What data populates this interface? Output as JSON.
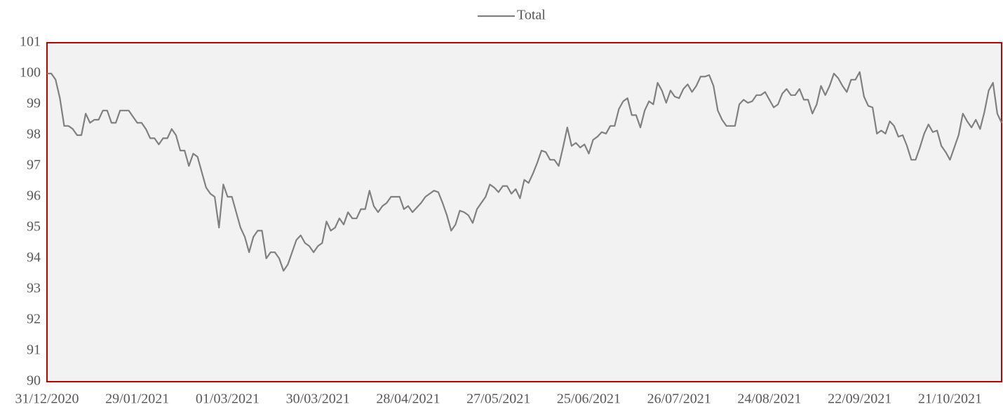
{
  "chart_data": {
    "type": "line",
    "categories": [
      "31/12/2020",
      null,
      null,
      null,
      null,
      null,
      null,
      null,
      null,
      null,
      null,
      null,
      null,
      null,
      null,
      null,
      null,
      null,
      null,
      null,
      null,
      "29/01/2021",
      null,
      null,
      null,
      null,
      null,
      null,
      null,
      null,
      null,
      null,
      null,
      null,
      null,
      null,
      null,
      null,
      null,
      null,
      null,
      null,
      "01/03/2021",
      null,
      null,
      null,
      null,
      null,
      null,
      null,
      null,
      null,
      null,
      null,
      null,
      null,
      null,
      null,
      null,
      null,
      null,
      null,
      null,
      "30/03/2021",
      null,
      null,
      null,
      null,
      null,
      null,
      null,
      null,
      null,
      null,
      null,
      null,
      null,
      null,
      null,
      null,
      null,
      null,
      null,
      null,
      "28/04/2021",
      null,
      null,
      null,
      null,
      null,
      null,
      null,
      null,
      null,
      null,
      null,
      null,
      null,
      null,
      null,
      null,
      null,
      null,
      null,
      null,
      "27/05/2021",
      null,
      null,
      null,
      null,
      null,
      null,
      null,
      null,
      null,
      null,
      null,
      null,
      null,
      null,
      null,
      null,
      null,
      null,
      null,
      null,
      "25/06/2021",
      null,
      null,
      null,
      null,
      null,
      null,
      null,
      null,
      null,
      null,
      null,
      null,
      null,
      null,
      null,
      null,
      null,
      null,
      null,
      null,
      "26/07/2021",
      null,
      null,
      null,
      null,
      null,
      null,
      null,
      null,
      null,
      null,
      null,
      null,
      null,
      null,
      null,
      null,
      null,
      null,
      null,
      null,
      "24/08/2021",
      null,
      null,
      null,
      null,
      null,
      null,
      null,
      null,
      null,
      null,
      null,
      null,
      null,
      null,
      null,
      null,
      null,
      null,
      null,
      null,
      "22/09/2021",
      null,
      null,
      null,
      null,
      null,
      null,
      null,
      null,
      null,
      null,
      null,
      null,
      null,
      null,
      null,
      null,
      null,
      null,
      null,
      null,
      "21/10/2021",
      null,
      null,
      null,
      null,
      null,
      null,
      null,
      null,
      null,
      null,
      null,
      null
    ],
    "series": [
      {
        "name": "Total",
        "color": "#808080",
        "values": [
          100,
          100,
          99.8,
          99.2,
          98.3,
          98.3,
          98.2,
          98.0,
          98.0,
          98.7,
          98.4,
          98.5,
          98.5,
          98.8,
          98.8,
          98.4,
          98.4,
          98.8,
          98.8,
          98.8,
          98.6,
          98.4,
          98.4,
          98.2,
          97.9,
          97.9,
          97.7,
          97.9,
          97.9,
          98.2,
          98.0,
          97.5,
          97.5,
          97.0,
          97.4,
          97.3,
          96.8,
          96.3,
          96.1,
          96.0,
          95.0,
          96.4,
          96.0,
          96.0,
          95.5,
          95.0,
          94.7,
          94.2,
          94.7,
          94.9,
          94.9,
          94.0,
          94.2,
          94.2,
          94.0,
          93.6,
          93.8,
          94.2,
          94.6,
          94.75,
          94.5,
          94.4,
          94.2,
          94.4,
          94.5,
          95.2,
          94.9,
          95.0,
          95.3,
          95.1,
          95.5,
          95.3,
          95.3,
          95.6,
          95.6,
          96.2,
          95.7,
          95.5,
          95.7,
          95.8,
          96.0,
          96.0,
          96.0,
          95.6,
          95.7,
          95.5,
          95.65,
          95.8,
          96.0,
          96.1,
          96.2,
          96.15,
          95.8,
          95.4,
          94.9,
          95.1,
          95.55,
          95.5,
          95.4,
          95.15,
          95.6,
          95.8,
          96.0,
          96.4,
          96.3,
          96.15,
          96.35,
          96.35,
          96.1,
          96.25,
          95.95,
          96.55,
          96.45,
          96.75,
          97.1,
          97.5,
          97.45,
          97.2,
          97.2,
          97.0,
          97.6,
          98.25,
          97.65,
          97.75,
          97.6,
          97.7,
          97.4,
          97.85,
          97.95,
          98.1,
          98.05,
          98.3,
          98.3,
          98.85,
          99.1,
          99.2,
          98.65,
          98.65,
          98.25,
          98.8,
          99.1,
          99.0,
          99.7,
          99.45,
          99.05,
          99.45,
          99.25,
          99.2,
          99.5,
          99.65,
          99.4,
          99.6,
          99.9,
          99.9,
          99.95,
          99.6,
          98.8,
          98.5,
          98.3,
          98.3,
          98.3,
          99.0,
          99.15,
          99.05,
          99.1,
          99.3,
          99.3,
          99.4,
          99.15,
          98.9,
          99.0,
          99.35,
          99.5,
          99.3,
          99.3,
          99.5,
          99.15,
          99.15,
          98.7,
          99.0,
          99.6,
          99.3,
          99.6,
          100.0,
          99.85,
          99.6,
          99.4,
          99.8,
          99.8,
          100.05,
          99.25,
          98.95,
          98.9,
          98.05,
          98.15,
          98.05,
          98.45,
          98.3,
          97.95,
          98.0,
          97.65,
          97.2,
          97.2,
          97.6,
          98.05,
          98.35,
          98.1,
          98.15,
          97.65,
          97.45,
          97.2,
          97.6,
          98.0,
          98.7,
          98.45,
          98.25,
          98.5,
          98.2,
          98.75,
          99.45,
          99.7,
          98.7,
          98.4
        ]
      }
    ],
    "ylim": [
      90,
      101
    ],
    "yticks": [
      90,
      91,
      92,
      93,
      94,
      95,
      96,
      97,
      98,
      99,
      100,
      101
    ],
    "grid": false,
    "legend": "top",
    "plot_background": "#f2f2f2",
    "plot_border": "#c00000"
  }
}
